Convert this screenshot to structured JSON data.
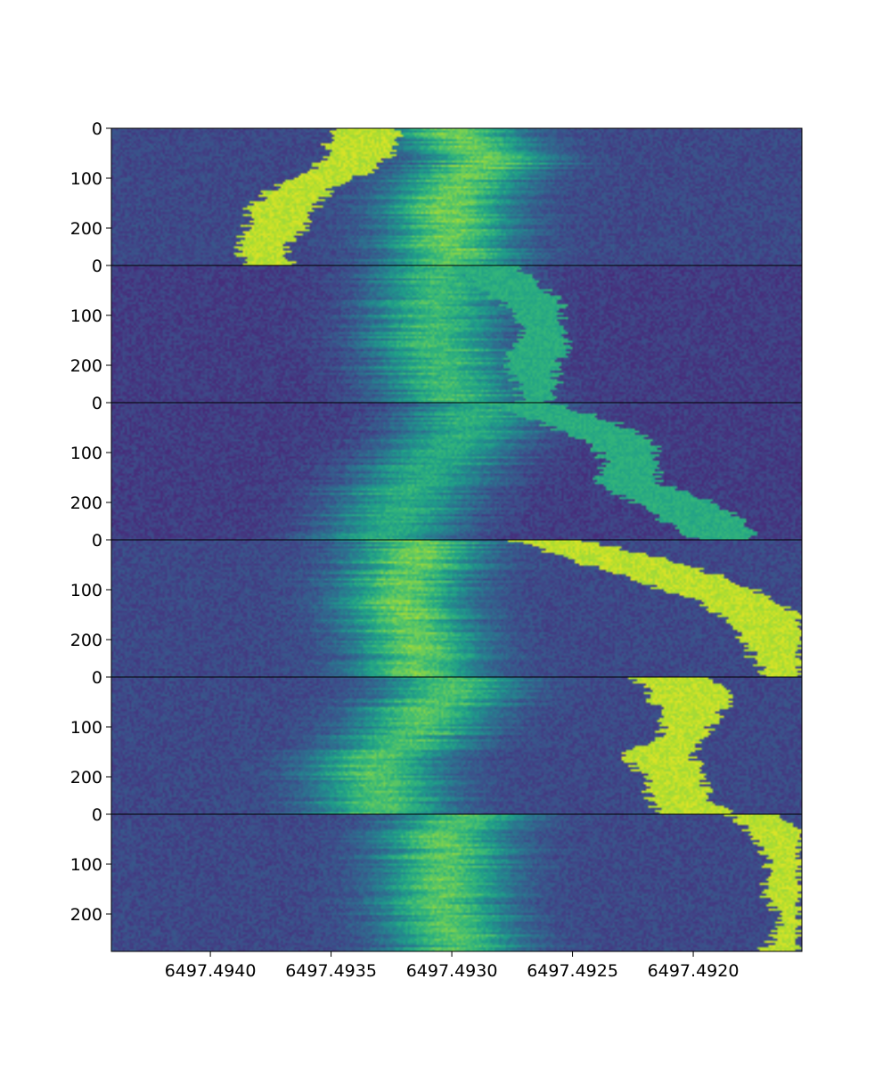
{
  "chart_data": {
    "type": "heatmap",
    "title": "",
    "xlabel": "",
    "ylabel": "",
    "colormap": "viridis",
    "x_axis": {
      "direction": "decreasing",
      "xlim": [
        6497.49441,
        6497.49155
      ],
      "tick_values": [
        6497.494,
        6497.4935,
        6497.493,
        6497.4925,
        6497.492
      ],
      "tick_labels": [
        "6497.4940",
        "6497.4935",
        "6497.4930",
        "6497.4925",
        "6497.4920"
      ]
    },
    "y_axis": {
      "ylim_per_panel": [
        0,
        275
      ],
      "tick_values": [
        0,
        100,
        200
      ],
      "tick_labels": [
        "0",
        "100",
        "200"
      ],
      "inverted": true
    },
    "panels": [
      {
        "name": "panel-1",
        "background": 0.22,
        "band": {
          "center": [
            [
              0,
              6497.49303
            ],
            [
              60,
              6497.49284
            ],
            [
              120,
              6497.493
            ],
            [
              180,
              6497.49303
            ],
            [
              275,
              6497.493
            ]
          ],
          "width": 0.00026,
          "peak": 0.55
        },
        "mask": {
          "value": 0.9,
          "rows": [
            [
              0,
              6497.49347,
              6497.49321
            ],
            [
              40,
              6497.49352,
              6497.49323
            ],
            [
              80,
              6497.49356,
              6497.4933
            ],
            [
              120,
              6497.49374,
              6497.4935
            ],
            [
              160,
              6497.49385,
              6497.49356
            ],
            [
              200,
              6497.49385,
              6497.4936
            ],
            [
              240,
              6497.49389,
              6497.49369
            ],
            [
              275,
              6497.49386,
              6497.49366
            ]
          ]
        }
      },
      {
        "name": "panel-2",
        "background": 0.18,
        "band": {
          "center": [
            [
              0,
              6497.49302
            ],
            [
              60,
              6497.49305
            ],
            [
              120,
              6497.49308
            ],
            [
              180,
              6497.49305
            ],
            [
              275,
              6497.49297
            ]
          ],
          "width": 0.00028,
          "peak": 0.5
        },
        "mask": {
          "value": 0.62,
          "rows": [
            [
              0,
              6497.49299,
              6497.49276
            ],
            [
              40,
              6497.4929,
              6497.49263
            ],
            [
              80,
              6497.49278,
              6497.49253
            ],
            [
              120,
              6497.49272,
              6497.49254
            ],
            [
              160,
              6497.49274,
              6497.49252
            ],
            [
              200,
              6497.49277,
              6497.49256
            ],
            [
              240,
              6497.49273,
              6497.49257
            ],
            [
              275,
              6497.49272,
              6497.4926
            ]
          ]
        }
      },
      {
        "name": "panel-3",
        "background": 0.18,
        "band": {
          "center": [
            [
              0,
              6497.4929
            ],
            [
              60,
              6497.49295
            ],
            [
              120,
              6497.49305
            ],
            [
              180,
              6497.4932
            ],
            [
              275,
              6497.49325
            ]
          ],
          "width": 0.00028,
          "peak": 0.45
        },
        "mask": {
          "value": 0.62,
          "rows": [
            [
              0,
              6497.49282,
              6497.49258
            ],
            [
              40,
              6497.49264,
              6497.49232
            ],
            [
              80,
              6497.49242,
              6497.49215
            ],
            [
              120,
              6497.49236,
              6497.49215
            ],
            [
              160,
              6497.4924,
              6497.49214
            ],
            [
              200,
              6497.49225,
              6497.49192
            ],
            [
              240,
              6497.49211,
              6497.49178
            ],
            [
              275,
              6497.49198,
              6497.49174
            ]
          ]
        }
      },
      {
        "name": "panel-4",
        "background": 0.22,
        "band": {
          "center": [
            [
              0,
              6497.49312
            ],
            [
              60,
              6497.49318
            ],
            [
              120,
              6497.4932
            ],
            [
              180,
              6497.49318
            ],
            [
              275,
              6497.4931
            ]
          ],
          "width": 0.00026,
          "peak": 0.55
        },
        "mask": {
          "value": 0.9,
          "rows": [
            [
              0,
              6497.49276,
              6497.49245
            ],
            [
              40,
              6497.4925,
              6497.4921
            ],
            [
              80,
              6497.49225,
              6497.49185
            ],
            [
              120,
              6497.492,
              6497.49165
            ],
            [
              160,
              6497.49185,
              6497.49155
            ],
            [
              200,
              6497.4918,
              6497.49155
            ],
            [
              240,
              6497.49175,
              6497.49155
            ],
            [
              275,
              6497.4917,
              6497.49155
            ]
          ]
        }
      },
      {
        "name": "panel-5",
        "background": 0.22,
        "band": {
          "center": [
            [
              0,
              6497.493
            ],
            [
              60,
              6497.49308
            ],
            [
              120,
              6497.49318
            ],
            [
              180,
              6497.4933
            ],
            [
              275,
              6497.49328
            ]
          ],
          "width": 0.00027,
          "peak": 0.5
        },
        "mask": {
          "value": 0.9,
          "rows": [
            [
              0,
              6497.49225,
              6497.49195
            ],
            [
              40,
              6497.49218,
              6497.49183
            ],
            [
              80,
              6497.49212,
              6497.4919
            ],
            [
              120,
              6497.49214,
              6497.49196
            ],
            [
              160,
              6497.4923,
              6497.492
            ],
            [
              200,
              6497.4922,
              6497.49195
            ],
            [
              240,
              6497.49218,
              6497.49194
            ],
            [
              275,
              6497.49215,
              6497.49185
            ]
          ]
        }
      },
      {
        "name": "panel-6",
        "background": 0.22,
        "band": {
          "center": [
            [
              0,
              6497.49297
            ],
            [
              60,
              6497.49302
            ],
            [
              120,
              6497.49305
            ],
            [
              180,
              6497.49305
            ],
            [
              275,
              6497.49295
            ]
          ],
          "width": 0.00026,
          "peak": 0.52
        },
        "mask": {
          "value": 0.9,
          "rows": [
            [
              0,
              6497.49185,
              6497.49163
            ],
            [
              40,
              6497.49176,
              6497.49155
            ],
            [
              80,
              6497.4917,
              6497.49155
            ],
            [
              120,
              6497.49169,
              6497.49155
            ],
            [
              160,
              6497.49172,
              6497.49155
            ],
            [
              200,
              6497.49165,
              6497.49155
            ],
            [
              240,
              6497.49165,
              6497.49155
            ],
            [
              275,
              6497.49172,
              6497.49155
            ]
          ]
        }
      }
    ]
  }
}
